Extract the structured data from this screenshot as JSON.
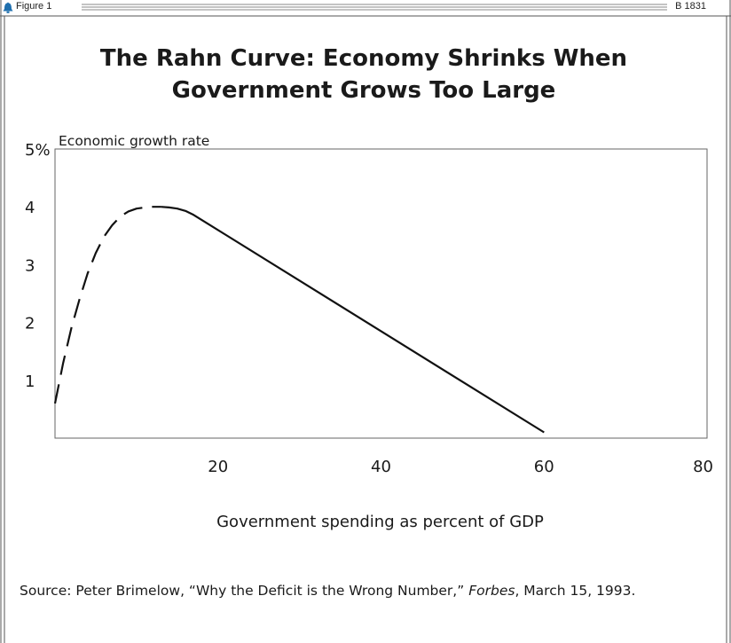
{
  "header": {
    "figure_label": "Figure 1",
    "code": "B 1831",
    "icon": "liberty-bell-icon",
    "accent": "#1f6fae"
  },
  "chart_data": {
    "type": "line",
    "title": "The Rahn Curve: Economy Shrinks When Government Grows Too Large",
    "title_lines": [
      "The Rahn Curve: Economy Shrinks When",
      "Government Grows Too Large"
    ],
    "xlabel": "Government spending as percent of GDP",
    "ylabel": "Economic growth rate",
    "xlim": [
      0,
      80
    ],
    "ylim": [
      0,
      5
    ],
    "x_ticks": [
      20,
      40,
      60,
      80
    ],
    "x_tick_labels": [
      "20",
      "40",
      "60",
      "80"
    ],
    "y_ticks": [
      1,
      2,
      3,
      4,
      5
    ],
    "y_tick_labels": [
      "1",
      "2",
      "3",
      "4",
      "5%"
    ],
    "grid": false,
    "series": [
      {
        "style": "dashed",
        "x": [
          0,
          1,
          2,
          3,
          4,
          5,
          6,
          7,
          8,
          9,
          10,
          11,
          12,
          13
        ],
        "y": [
          0.6,
          1.3,
          1.9,
          2.4,
          2.85,
          3.2,
          3.48,
          3.68,
          3.83,
          3.92,
          3.97,
          3.99,
          4.0,
          4.0
        ]
      },
      {
        "style": "solid",
        "x": [
          13,
          14,
          15,
          16,
          17,
          60
        ],
        "y": [
          4.0,
          3.99,
          3.97,
          3.93,
          3.86,
          0.1
        ]
      }
    ]
  },
  "source": {
    "label": "Source:",
    "before": "Peter Brimelow, “Why the Deficit is the Wrong Number,”",
    "publication": "Forbes",
    "after": ", March 15, 1993."
  }
}
